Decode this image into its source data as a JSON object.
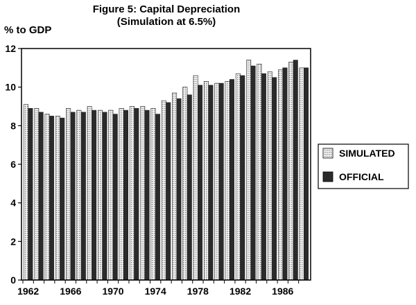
{
  "chart_data": {
    "type": "bar",
    "title": "Figure 5: Capital Depreciation",
    "subtitle": "(Simulation at 6.5%)",
    "ylabel": "% to GDP",
    "xlabel": "",
    "ylim": [
      0,
      12
    ],
    "yticks": [
      "0",
      "2",
      "4",
      "6",
      "8",
      "10",
      "12"
    ],
    "xtick_labels": [
      "1962",
      "1966",
      "1970",
      "1974",
      "1978",
      "1982",
      "1986"
    ],
    "categories": [
      "1962",
      "1963",
      "1964",
      "1965",
      "1966",
      "1967",
      "1968",
      "1969",
      "1970",
      "1971",
      "1972",
      "1973",
      "1974",
      "1975",
      "1976",
      "1977",
      "1978",
      "1979",
      "1980",
      "1981",
      "1982",
      "1983",
      "1984",
      "1985",
      "1986",
      "1987",
      "1988"
    ],
    "series": [
      {
        "name": "SIMULATED",
        "color": "#cfcfcf",
        "values": [
          9.1,
          8.9,
          8.6,
          8.5,
          8.9,
          8.8,
          9.0,
          8.8,
          8.8,
          8.9,
          9.0,
          9.0,
          8.9,
          9.3,
          9.7,
          10.0,
          10.6,
          10.3,
          10.2,
          10.3,
          10.7,
          11.4,
          11.2,
          10.8,
          10.9,
          11.3,
          11.0
        ]
      },
      {
        "name": "OFFICIAL",
        "color": "#2b2b2b",
        "values": [
          8.9,
          8.7,
          8.5,
          8.4,
          8.7,
          8.7,
          8.8,
          8.7,
          8.6,
          8.8,
          8.9,
          8.8,
          8.6,
          9.2,
          9.4,
          9.6,
          10.1,
          10.1,
          10.2,
          10.4,
          10.6,
          11.1,
          10.7,
          10.5,
          11.0,
          11.4,
          11.0
        ]
      }
    ],
    "legend_position": "right",
    "grid": false
  }
}
